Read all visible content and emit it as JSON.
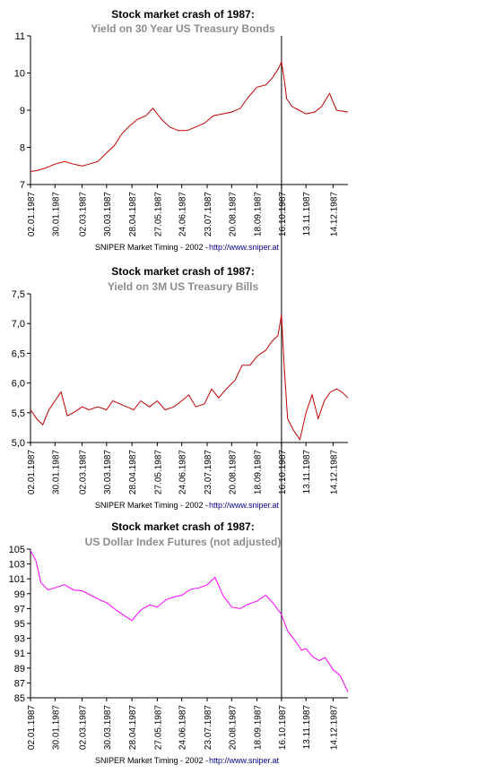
{
  "credit": {
    "text": "SNIPER Market Timing - 2002 - ",
    "link": "http://www.sniper.at"
  },
  "vline_date": "16.10.1987",
  "chart_data": [
    {
      "type": "line",
      "title": "Stock market crash of 1987:",
      "subtitle": "Yield on 30 Year US Treasury Bonds",
      "color": "#c00000",
      "ylim": [
        7,
        11
      ],
      "yticks": [
        "7",
        "8",
        "9",
        "10",
        "11"
      ],
      "xlim": [
        "1987-01-02",
        "1987-12-31"
      ],
      "xticks": [
        "02.01.1987",
        "30.01.1987",
        "02.03.1987",
        "30.03.1987",
        "28.04.1987",
        "27.05.1987",
        "24.06.1987",
        "23.07.1987",
        "20.08.1987",
        "18.09.1987",
        "16.10.1987",
        "13.11.1987",
        "14.12.1987"
      ],
      "grid": false,
      "series": [
        {
          "x": [
            "1987-01-02",
            "1987-01-10",
            "1987-01-20",
            "1987-01-30",
            "1987-02-10",
            "1987-02-20",
            "1987-03-02",
            "1987-03-10",
            "1987-03-20",
            "1987-03-30",
            "1987-04-08",
            "1987-04-16",
            "1987-04-24",
            "1987-05-04",
            "1987-05-14",
            "1987-05-22",
            "1987-06-01",
            "1987-06-10",
            "1987-06-20",
            "1987-06-30",
            "1987-07-10",
            "1987-07-20",
            "1987-07-30",
            "1987-08-10",
            "1987-08-20",
            "1987-08-30",
            "1987-09-08",
            "1987-09-18",
            "1987-09-28",
            "1987-10-05",
            "1987-10-12",
            "1987-10-16",
            "1987-10-19",
            "1987-10-22",
            "1987-10-28",
            "1987-11-05",
            "1987-11-13",
            "1987-11-23",
            "1987-12-01",
            "1987-12-10",
            "1987-12-18",
            "1987-12-31"
          ],
          "values": [
            7.35,
            7.38,
            7.45,
            7.55,
            7.62,
            7.55,
            7.5,
            7.55,
            7.62,
            7.85,
            8.05,
            8.35,
            8.55,
            8.75,
            8.85,
            9.05,
            8.75,
            8.55,
            8.45,
            8.45,
            8.55,
            8.65,
            8.85,
            8.9,
            8.95,
            9.05,
            9.35,
            9.62,
            9.68,
            9.85,
            10.1,
            10.3,
            9.85,
            9.3,
            9.1,
            9.0,
            8.9,
            8.95,
            9.1,
            9.45,
            9.0,
            8.95
          ]
        }
      ]
    },
    {
      "type": "line",
      "title": "Stock market crash of 1987:",
      "subtitle": "Yield on 3M US Treasury Bills",
      "color": "#c00000",
      "ylim": [
        5.0,
        7.5
      ],
      "yticks": [
        "5,0",
        "5,5",
        "6,0",
        "6,5",
        "7,0",
        "7,5"
      ],
      "xlim": [
        "1987-01-02",
        "1987-12-31"
      ],
      "xticks": [
        "02.01.1987",
        "30.01.1987",
        "02.03.1987",
        "30.03.1987",
        "28.04.1987",
        "27.05.1987",
        "24.06.1987",
        "23.07.1987",
        "20.08.1987",
        "18.09.1987",
        "16.10.1987",
        "13.11.1987",
        "14.12.1987"
      ],
      "grid": false,
      "series": [
        {
          "x": [
            "1987-01-02",
            "1987-01-09",
            "1987-01-16",
            "1987-01-23",
            "1987-01-30",
            "1987-02-06",
            "1987-02-13",
            "1987-02-20",
            "1987-03-02",
            "1987-03-10",
            "1987-03-20",
            "1987-03-30",
            "1987-04-06",
            "1987-04-14",
            "1987-04-22",
            "1987-04-30",
            "1987-05-08",
            "1987-05-18",
            "1987-05-27",
            "1987-06-05",
            "1987-06-15",
            "1987-06-24",
            "1987-07-02",
            "1987-07-10",
            "1987-07-20",
            "1987-07-28",
            "1987-08-05",
            "1987-08-14",
            "1987-08-24",
            "1987-09-01",
            "1987-09-10",
            "1987-09-18",
            "1987-09-28",
            "1987-10-05",
            "1987-10-12",
            "1987-10-16",
            "1987-10-19",
            "1987-10-23",
            "1987-10-30",
            "1987-11-06",
            "1987-11-13",
            "1987-11-20",
            "1987-11-27",
            "1987-12-04",
            "1987-12-11",
            "1987-12-18",
            "1987-12-24",
            "1987-12-31"
          ],
          "values": [
            5.55,
            5.4,
            5.3,
            5.55,
            5.7,
            5.85,
            5.45,
            5.5,
            5.6,
            5.55,
            5.6,
            5.55,
            5.7,
            5.65,
            5.6,
            5.55,
            5.7,
            5.6,
            5.7,
            5.55,
            5.6,
            5.7,
            5.8,
            5.6,
            5.65,
            5.9,
            5.75,
            5.9,
            6.05,
            6.3,
            6.3,
            6.45,
            6.55,
            6.7,
            6.8,
            7.15,
            6.3,
            5.4,
            5.2,
            5.05,
            5.5,
            5.8,
            5.4,
            5.7,
            5.85,
            5.9,
            5.85,
            5.75
          ]
        }
      ]
    },
    {
      "type": "line",
      "title": "Stock market crash of 1987:",
      "subtitle": "US Dollar Index Futures (not adjusted)",
      "color": "#ff00ff",
      "ylim": [
        85,
        105
      ],
      "yticks": [
        "85",
        "87",
        "89",
        "91",
        "93",
        "95",
        "97",
        "99",
        "101",
        "103",
        "105"
      ],
      "xlim": [
        "1987-01-02",
        "1987-12-31"
      ],
      "xticks": [
        "02.01.1987",
        "30.01.1987",
        "02.03.1987",
        "30.03.1987",
        "28.04.1987",
        "27.05.1987",
        "24.06.1987",
        "23.07.1987",
        "20.08.1987",
        "18.09.1987",
        "16.10.1987",
        "13.11.1987",
        "14.12.1987"
      ],
      "grid": false,
      "series": [
        {
          "x": [
            "1987-01-02",
            "1987-01-08",
            "1987-01-14",
            "1987-01-22",
            "1987-01-30",
            "1987-02-10",
            "1987-02-20",
            "1987-03-02",
            "1987-03-12",
            "1987-03-22",
            "1987-03-30",
            "1987-04-10",
            "1987-04-20",
            "1987-04-28",
            "1987-05-08",
            "1987-05-18",
            "1987-05-27",
            "1987-06-06",
            "1987-06-16",
            "1987-06-24",
            "1987-07-04",
            "1987-07-14",
            "1987-07-23",
            "1987-08-01",
            "1987-08-10",
            "1987-08-20",
            "1987-08-30",
            "1987-09-08",
            "1987-09-18",
            "1987-09-28",
            "1987-10-06",
            "1987-10-16",
            "1987-10-23",
            "1987-11-01",
            "1987-11-08",
            "1987-11-13",
            "1987-11-20",
            "1987-11-28",
            "1987-12-05",
            "1987-12-14",
            "1987-12-22",
            "1987-12-31"
          ],
          "values": [
            104.8,
            103.5,
            100.5,
            99.5,
            99.8,
            100.2,
            99.5,
            99.4,
            98.8,
            98.2,
            97.8,
            96.8,
            96.0,
            95.4,
            96.8,
            97.5,
            97.2,
            98.2,
            98.6,
            98.8,
            99.6,
            99.8,
            100.2,
            101.2,
            98.8,
            97.2,
            97.0,
            97.6,
            98.0,
            98.8,
            97.8,
            96.2,
            94.0,
            92.6,
            91.4,
            91.6,
            90.6,
            90.0,
            90.4,
            88.8,
            88.0,
            85.8
          ]
        }
      ]
    }
  ]
}
